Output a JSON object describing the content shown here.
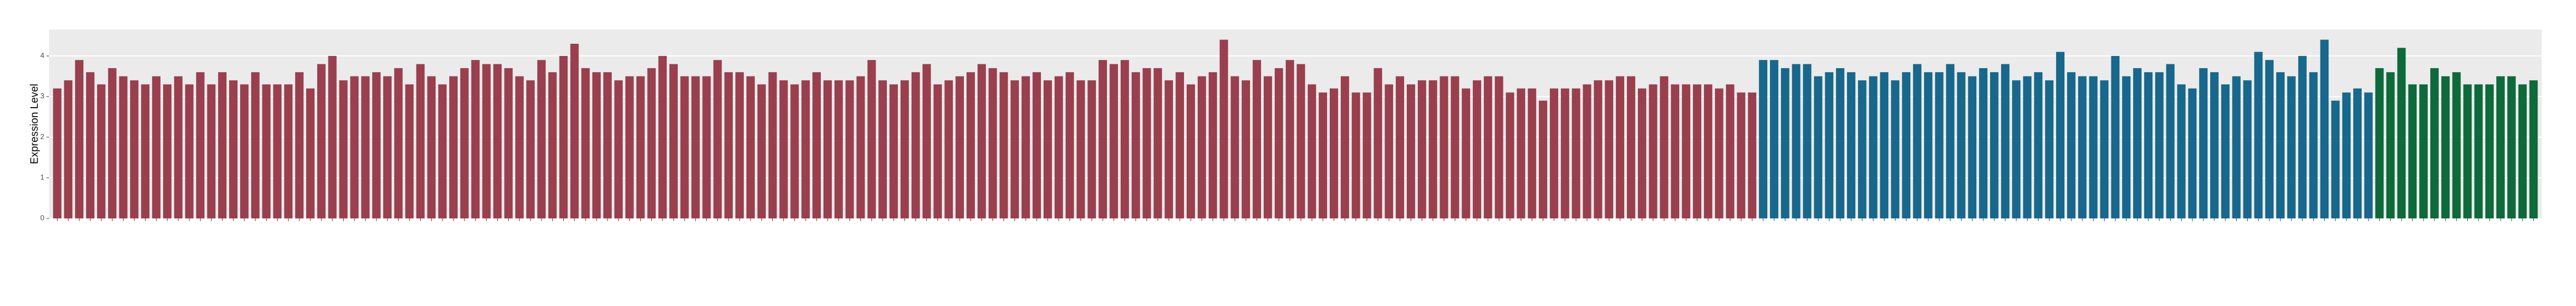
{
  "chart_data": {
    "type": "bar",
    "y_label": "Expression Level",
    "ylim": [
      0,
      4.65
    ],
    "yticks": [
      0,
      1,
      2,
      3,
      4
    ],
    "grid": true,
    "series": [
      {
        "color": "#9a3f4e",
        "values": [
          3.2,
          3.4,
          3.9,
          3.6,
          3.3,
          3.7,
          3.5,
          3.4,
          3.3,
          3.5,
          3.3,
          3.5,
          3.3,
          3.6,
          3.3,
          3.6,
          3.4,
          3.3,
          3.6,
          3.3,
          3.3,
          3.3,
          3.6,
          3.2,
          3.8,
          4.0,
          3.4,
          3.5,
          3.5,
          3.6,
          3.5,
          3.7,
          3.3,
          3.8,
          3.5,
          3.3,
          3.5,
          3.7,
          3.9,
          3.8,
          3.8,
          3.7,
          3.5,
          3.4,
          3.9,
          3.6,
          4.0,
          4.3,
          3.7,
          3.6,
          3.6,
          3.4,
          3.5,
          3.5,
          3.7,
          4.0,
          3.8,
          3.5,
          3.5,
          3.5,
          3.9,
          3.6,
          3.6,
          3.5,
          3.3,
          3.6,
          3.4,
          3.3,
          3.4,
          3.6,
          3.4,
          3.4,
          3.4,
          3.5,
          3.9,
          3.4,
          3.3,
          3.4,
          3.6,
          3.8,
          3.3,
          3.4,
          3.5,
          3.6,
          3.8,
          3.7,
          3.6,
          3.4,
          3.5,
          3.6,
          3.4,
          3.5,
          3.6,
          3.4,
          3.4,
          3.9,
          3.8,
          3.9,
          3.6,
          3.7,
          3.7,
          3.4,
          3.6,
          3.3,
          3.5,
          3.6,
          4.4,
          3.5,
          3.4,
          3.9,
          3.5,
          3.7,
          3.9,
          3.8,
          3.3,
          3.1,
          3.2,
          3.5,
          3.1,
          3.1,
          3.7,
          3.3,
          3.5,
          3.3,
          3.4,
          3.4,
          3.5,
          3.5,
          3.2,
          3.4,
          3.5,
          3.5,
          3.1,
          3.2,
          3.2,
          2.9,
          3.2,
          3.2,
          3.2,
          3.3,
          3.4,
          3.4,
          3.5,
          3.5,
          3.2,
          3.3,
          3.5,
          3.3,
          3.3,
          3.3,
          3.3,
          3.2,
          3.3,
          3.1,
          3.1
        ]
      },
      {
        "color": "#17688c",
        "values": [
          3.9,
          3.9,
          3.7,
          3.8,
          3.8,
          3.5,
          3.6,
          3.7,
          3.6,
          3.4,
          3.5,
          3.6,
          3.4,
          3.6,
          3.8,
          3.6,
          3.6,
          3.8,
          3.6,
          3.5,
          3.7,
          3.6,
          3.8,
          3.4,
          3.5,
          3.6,
          3.4,
          4.1,
          3.6,
          3.5,
          3.5,
          3.4,
          4.0,
          3.5,
          3.7,
          3.6,
          3.6,
          3.8,
          3.3,
          3.2,
          3.7,
          3.6,
          3.3,
          3.5,
          3.4,
          4.1,
          3.9,
          3.6,
          3.5,
          4.0,
          3.6,
          4.4,
          2.9,
          3.1,
          3.2,
          3.1
        ]
      },
      {
        "color": "#0e6a3b",
        "values": [
          3.7,
          3.6,
          4.2,
          3.3,
          3.3,
          3.7,
          3.5,
          3.6,
          3.3,
          3.3,
          3.3,
          3.5,
          3.5,
          3.3,
          3.4
        ]
      }
    ]
  }
}
